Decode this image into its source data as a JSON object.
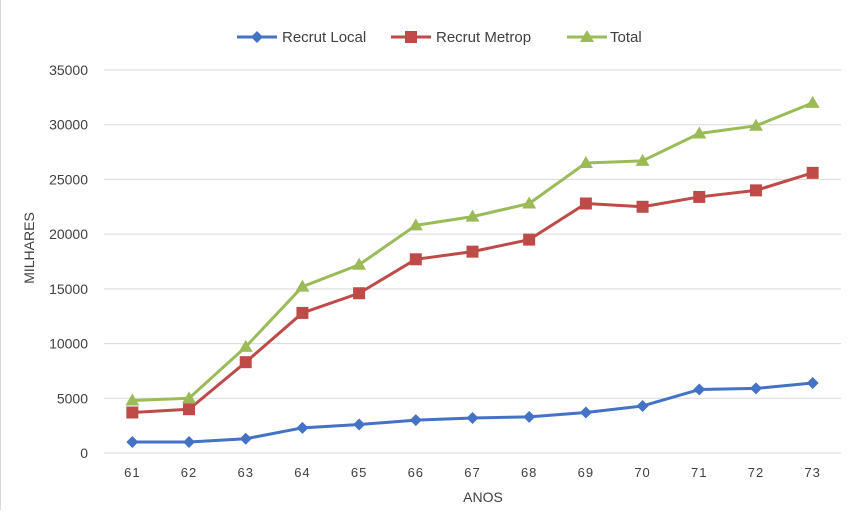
{
  "chart_data": {
    "type": "line",
    "title": "",
    "xlabel": "ANOS",
    "ylabel": "MILHARES",
    "categories": [
      "61",
      "62",
      "63",
      "64",
      "65",
      "66",
      "67",
      "68",
      "69",
      "70",
      "71",
      "72",
      "73"
    ],
    "ylim": [
      0,
      35000
    ],
    "yticks": [
      "0",
      "5000",
      "10000",
      "15000",
      "20000",
      "25000",
      "30000",
      "35000"
    ],
    "grid": true,
    "legend_position": "top",
    "series": [
      {
        "name": "Recrut Local",
        "color": "#4472C4",
        "marker": "diamond",
        "values": [
          1000,
          1000,
          1300,
          2300,
          2600,
          3000,
          3200,
          3300,
          3700,
          4300,
          5800,
          5900,
          6400
        ]
      },
      {
        "name": "Recrut Metrop",
        "color": "#BE4B48",
        "marker": "square",
        "values": [
          3700,
          4000,
          8300,
          12800,
          14600,
          17700,
          18400,
          19500,
          22800,
          22500,
          23400,
          24000,
          25600
        ]
      },
      {
        "name": "Total",
        "color": "#9BBB59",
        "marker": "triangle",
        "values": [
          4800,
          5000,
          9700,
          15200,
          17200,
          20800,
          21600,
          22800,
          26500,
          26700,
          29200,
          29900,
          32000
        ]
      }
    ]
  }
}
